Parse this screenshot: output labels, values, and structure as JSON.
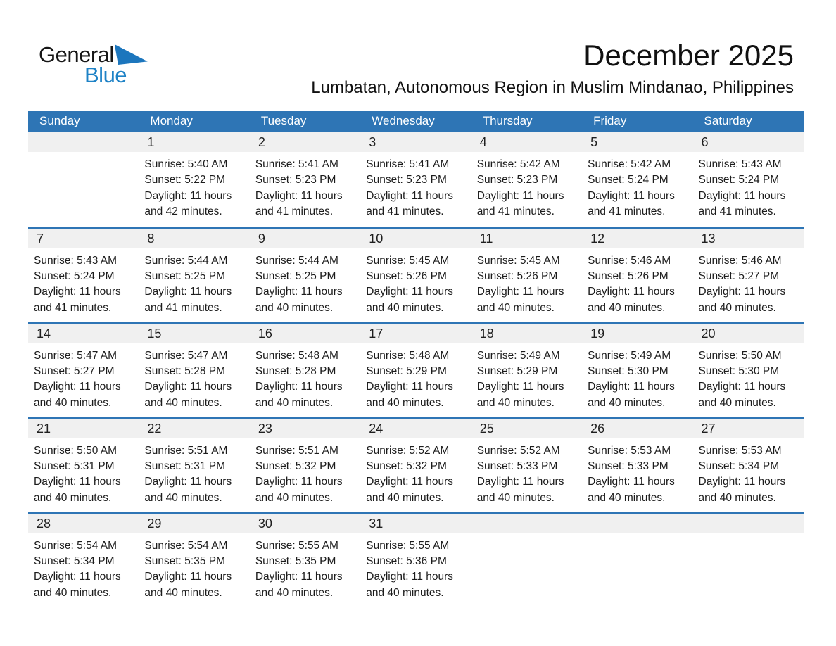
{
  "logo": {
    "general": "General",
    "blue": "Blue"
  },
  "header": {
    "title": "December 2025",
    "subtitle": "Lumbatan, Autonomous Region in Muslim Mindanao, Philippines"
  },
  "colors": {
    "accent_blue": "#2E75B5",
    "band_gray": "#F0F0F0",
    "logo_text_blue": "#1E82C6",
    "logo_triangle_blue": "#1C76BD",
    "header_text": "#FFFFFF"
  },
  "calendar": {
    "weekdays": [
      "Sunday",
      "Monday",
      "Tuesday",
      "Wednesday",
      "Thursday",
      "Friday",
      "Saturday"
    ],
    "weeks": [
      [
        null,
        {
          "day": "1",
          "lines": [
            "Sunrise: 5:40 AM",
            "Sunset: 5:22 PM",
            "Daylight: 11 hours",
            "and 42 minutes."
          ]
        },
        {
          "day": "2",
          "lines": [
            "Sunrise: 5:41 AM",
            "Sunset: 5:23 PM",
            "Daylight: 11 hours",
            "and 41 minutes."
          ]
        },
        {
          "day": "3",
          "lines": [
            "Sunrise: 5:41 AM",
            "Sunset: 5:23 PM",
            "Daylight: 11 hours",
            "and 41 minutes."
          ]
        },
        {
          "day": "4",
          "lines": [
            "Sunrise: 5:42 AM",
            "Sunset: 5:23 PM",
            "Daylight: 11 hours",
            "and 41 minutes."
          ]
        },
        {
          "day": "5",
          "lines": [
            "Sunrise: 5:42 AM",
            "Sunset: 5:24 PM",
            "Daylight: 11 hours",
            "and 41 minutes."
          ]
        },
        {
          "day": "6",
          "lines": [
            "Sunrise: 5:43 AM",
            "Sunset: 5:24 PM",
            "Daylight: 11 hours",
            "and 41 minutes."
          ]
        }
      ],
      [
        {
          "day": "7",
          "lines": [
            "Sunrise: 5:43 AM",
            "Sunset: 5:24 PM",
            "Daylight: 11 hours",
            "and 41 minutes."
          ]
        },
        {
          "day": "8",
          "lines": [
            "Sunrise: 5:44 AM",
            "Sunset: 5:25 PM",
            "Daylight: 11 hours",
            "and 41 minutes."
          ]
        },
        {
          "day": "9",
          "lines": [
            "Sunrise: 5:44 AM",
            "Sunset: 5:25 PM",
            "Daylight: 11 hours",
            "and 40 minutes."
          ]
        },
        {
          "day": "10",
          "lines": [
            "Sunrise: 5:45 AM",
            "Sunset: 5:26 PM",
            "Daylight: 11 hours",
            "and 40 minutes."
          ]
        },
        {
          "day": "11",
          "lines": [
            "Sunrise: 5:45 AM",
            "Sunset: 5:26 PM",
            "Daylight: 11 hours",
            "and 40 minutes."
          ]
        },
        {
          "day": "12",
          "lines": [
            "Sunrise: 5:46 AM",
            "Sunset: 5:26 PM",
            "Daylight: 11 hours",
            "and 40 minutes."
          ]
        },
        {
          "day": "13",
          "lines": [
            "Sunrise: 5:46 AM",
            "Sunset: 5:27 PM",
            "Daylight: 11 hours",
            "and 40 minutes."
          ]
        }
      ],
      [
        {
          "day": "14",
          "lines": [
            "Sunrise: 5:47 AM",
            "Sunset: 5:27 PM",
            "Daylight: 11 hours",
            "and 40 minutes."
          ]
        },
        {
          "day": "15",
          "lines": [
            "Sunrise: 5:47 AM",
            "Sunset: 5:28 PM",
            "Daylight: 11 hours",
            "and 40 minutes."
          ]
        },
        {
          "day": "16",
          "lines": [
            "Sunrise: 5:48 AM",
            "Sunset: 5:28 PM",
            "Daylight: 11 hours",
            "and 40 minutes."
          ]
        },
        {
          "day": "17",
          "lines": [
            "Sunrise: 5:48 AM",
            "Sunset: 5:29 PM",
            "Daylight: 11 hours",
            "and 40 minutes."
          ]
        },
        {
          "day": "18",
          "lines": [
            "Sunrise: 5:49 AM",
            "Sunset: 5:29 PM",
            "Daylight: 11 hours",
            "and 40 minutes."
          ]
        },
        {
          "day": "19",
          "lines": [
            "Sunrise: 5:49 AM",
            "Sunset: 5:30 PM",
            "Daylight: 11 hours",
            "and 40 minutes."
          ]
        },
        {
          "day": "20",
          "lines": [
            "Sunrise: 5:50 AM",
            "Sunset: 5:30 PM",
            "Daylight: 11 hours",
            "and 40 minutes."
          ]
        }
      ],
      [
        {
          "day": "21",
          "lines": [
            "Sunrise: 5:50 AM",
            "Sunset: 5:31 PM",
            "Daylight: 11 hours",
            "and 40 minutes."
          ]
        },
        {
          "day": "22",
          "lines": [
            "Sunrise: 5:51 AM",
            "Sunset: 5:31 PM",
            "Daylight: 11 hours",
            "and 40 minutes."
          ]
        },
        {
          "day": "23",
          "lines": [
            "Sunrise: 5:51 AM",
            "Sunset: 5:32 PM",
            "Daylight: 11 hours",
            "and 40 minutes."
          ]
        },
        {
          "day": "24",
          "lines": [
            "Sunrise: 5:52 AM",
            "Sunset: 5:32 PM",
            "Daylight: 11 hours",
            "and 40 minutes."
          ]
        },
        {
          "day": "25",
          "lines": [
            "Sunrise: 5:52 AM",
            "Sunset: 5:33 PM",
            "Daylight: 11 hours",
            "and 40 minutes."
          ]
        },
        {
          "day": "26",
          "lines": [
            "Sunrise: 5:53 AM",
            "Sunset: 5:33 PM",
            "Daylight: 11 hours",
            "and 40 minutes."
          ]
        },
        {
          "day": "27",
          "lines": [
            "Sunrise: 5:53 AM",
            "Sunset: 5:34 PM",
            "Daylight: 11 hours",
            "and 40 minutes."
          ]
        }
      ],
      [
        {
          "day": "28",
          "lines": [
            "Sunrise: 5:54 AM",
            "Sunset: 5:34 PM",
            "Daylight: 11 hours",
            "and 40 minutes."
          ]
        },
        {
          "day": "29",
          "lines": [
            "Sunrise: 5:54 AM",
            "Sunset: 5:35 PM",
            "Daylight: 11 hours",
            "and 40 minutes."
          ]
        },
        {
          "day": "30",
          "lines": [
            "Sunrise: 5:55 AM",
            "Sunset: 5:35 PM",
            "Daylight: 11 hours",
            "and 40 minutes."
          ]
        },
        {
          "day": "31",
          "lines": [
            "Sunrise: 5:55 AM",
            "Sunset: 5:36 PM",
            "Daylight: 11 hours",
            "and 40 minutes."
          ]
        },
        null,
        null,
        null
      ]
    ]
  }
}
